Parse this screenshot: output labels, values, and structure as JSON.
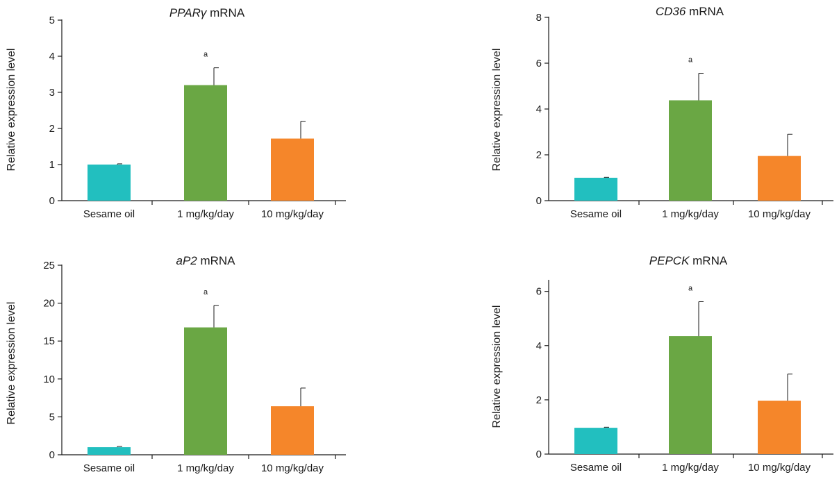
{
  "chart_data": [
    {
      "type": "bar",
      "title_italic": "PPARγ",
      "title_rest": " mRNA",
      "ylabel": "Relative expression level",
      "categories": [
        "Sesame oil",
        "1 mg/kg/day",
        "10 mg/kg/day"
      ],
      "values": [
        1.0,
        3.2,
        1.72
      ],
      "errors": [
        0.02,
        0.48,
        0.48
      ],
      "annotations": [
        "",
        "a",
        ""
      ],
      "ylim": [
        0,
        5
      ],
      "yticks": [
        0,
        1,
        2,
        3,
        4,
        5
      ],
      "colors": [
        "#22bfbf",
        "#6aa744",
        "#f5862a"
      ]
    },
    {
      "type": "bar",
      "title_italic": "CD36",
      "title_rest": " mRNA",
      "ylabel": "Relative expression level",
      "categories": [
        "Sesame oil",
        "1 mg/kg/day",
        "10 mg/kg/day"
      ],
      "values": [
        1.0,
        4.38,
        1.95
      ],
      "errors": [
        0.02,
        1.18,
        0.95
      ],
      "annotations": [
        "",
        "a",
        ""
      ],
      "ylim": [
        0,
        8
      ],
      "yticks": [
        0,
        2,
        4,
        6,
        8
      ],
      "colors": [
        "#22bfbf",
        "#6aa744",
        "#f5862a"
      ]
    },
    {
      "type": "bar",
      "title_italic": "aP2",
      "title_rest": " mRNA",
      "ylabel": "Relative expression level",
      "categories": [
        "Sesame oil",
        "1 mg/kg/day",
        "10 mg/kg/day"
      ],
      "values": [
        1.0,
        16.8,
        6.4
      ],
      "errors": [
        0.1,
        2.9,
        2.4
      ],
      "annotations": [
        "",
        "a",
        ""
      ],
      "ylim": [
        0,
        25
      ],
      "yticks": [
        0,
        5,
        10,
        15,
        20,
        25
      ],
      "colors": [
        "#22bfbf",
        "#6aa744",
        "#f5862a"
      ]
    },
    {
      "type": "bar",
      "title_italic": "PEPCK",
      "title_rest": " mRNA",
      "ylabel": "Relative expression level",
      "categories": [
        "Sesame oil",
        "1 mg/kg/day",
        "10 mg/kg/day"
      ],
      "values": [
        0.97,
        4.35,
        1.97
      ],
      "errors": [
        0.02,
        1.27,
        0.98
      ],
      "annotations": [
        "",
        "a",
        ""
      ],
      "ylim": [
        0,
        6.4
      ],
      "yticks": [
        0,
        2,
        4,
        6
      ],
      "colors": [
        "#22bfbf",
        "#6aa744",
        "#f5862a"
      ]
    }
  ]
}
